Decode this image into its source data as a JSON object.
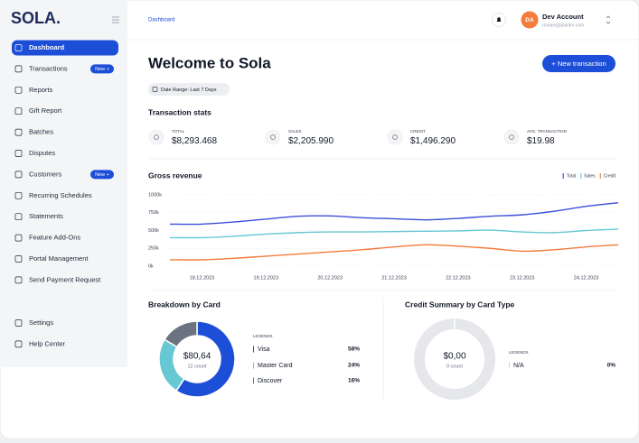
{
  "sidebar": {
    "logo": "SOLA.",
    "nav": [
      {
        "label": "Dashboard"
      },
      {
        "label": "Transactions",
        "badge": "New +"
      },
      {
        "label": "Reports"
      },
      {
        "label": "Gift Report"
      },
      {
        "label": "Batches"
      },
      {
        "label": "Disputes"
      },
      {
        "label": "Customers",
        "badge": "New +"
      },
      {
        "label": "Recurring Schedules"
      },
      {
        "label": "Statements"
      },
      {
        "label": "Feature Add-Ons"
      },
      {
        "label": "Portal Management"
      },
      {
        "label": "Send Payment Request"
      }
    ],
    "footer_nav": [
      {
        "label": "Settings"
      },
      {
        "label": "Help Center"
      }
    ]
  },
  "header": {
    "breadcrumb": "Dashboard",
    "avatar_initials": "DA",
    "account_name": "Dev Account",
    "account_email": "roman@plaintm.com"
  },
  "main": {
    "title": "Welcome to Sola",
    "new_button": "+ New transaction",
    "date_range": "Date Range: Last 7 Days",
    "stats_title": "Transaction stats",
    "stats": [
      {
        "label": "TOTAL",
        "value": "$8,293.468"
      },
      {
        "label": "SALES",
        "value": "$2,205.990"
      },
      {
        "label": "CREDIT",
        "value": "$1,496.290"
      },
      {
        "label": "AVG. TRANSACTION",
        "value": "$19.98"
      }
    ]
  },
  "chart_data": [
    {
      "type": "line",
      "title": "Gross revenue",
      "categories": [
        null,
        "18.12.2023",
        null,
        "19.12.2023",
        null,
        "20.12.2023",
        null,
        "21.12.2023",
        null,
        "22.12.2023",
        null,
        "23.12.2023",
        null,
        "24.12.2023",
        null
      ],
      "series": [
        {
          "name": "Total",
          "color": "#3b4fd8",
          "values": [
            590,
            590,
            620,
            660,
            700,
            705,
            680,
            665,
            650,
            670,
            700,
            720,
            770,
            840,
            890
          ]
        },
        {
          "name": "Sales",
          "color": "#67c8d4",
          "values": [
            400,
            400,
            420,
            450,
            470,
            480,
            480,
            485,
            490,
            495,
            505,
            480,
            470,
            500,
            520
          ]
        },
        {
          "name": "Credit",
          "color": "#f47c3c",
          "values": [
            90,
            90,
            110,
            140,
            170,
            200,
            230,
            270,
            300,
            280,
            250,
            210,
            230,
            270,
            300
          ]
        }
      ],
      "ylim": [
        0,
        1000
      ],
      "yticks": [
        {
          "value": 0,
          "label": "0k"
        },
        {
          "value": 250,
          "label": "250k"
        },
        {
          "value": 500,
          "label": "500k"
        },
        {
          "value": 750,
          "label": "750k"
        },
        {
          "value": 1000,
          "label": "1000k"
        }
      ],
      "grid": true,
      "legend": "top-right"
    },
    {
      "type": "pie",
      "title": "Breakdown by Card",
      "center_value": "$80,64",
      "center_label": "12 count",
      "legend_title": "LEGENDS",
      "categories": [
        "Visa",
        "Master Card",
        "Discover"
      ],
      "values": [
        58,
        24,
        16
      ],
      "value_labels": [
        "58%",
        "24%",
        "16%"
      ],
      "colors": [
        "#1d4ed8",
        "#67c8d4",
        "#6b7280"
      ]
    },
    {
      "type": "pie",
      "title": "Credit Summary by Card Type",
      "center_value": "$0,00",
      "center_label": "0 count",
      "legend_title": "LEGENDS",
      "categories": [
        "N/A"
      ],
      "values": [
        0
      ],
      "value_labels": [
        "0%"
      ],
      "colors": [
        "#d1d5db"
      ]
    }
  ]
}
